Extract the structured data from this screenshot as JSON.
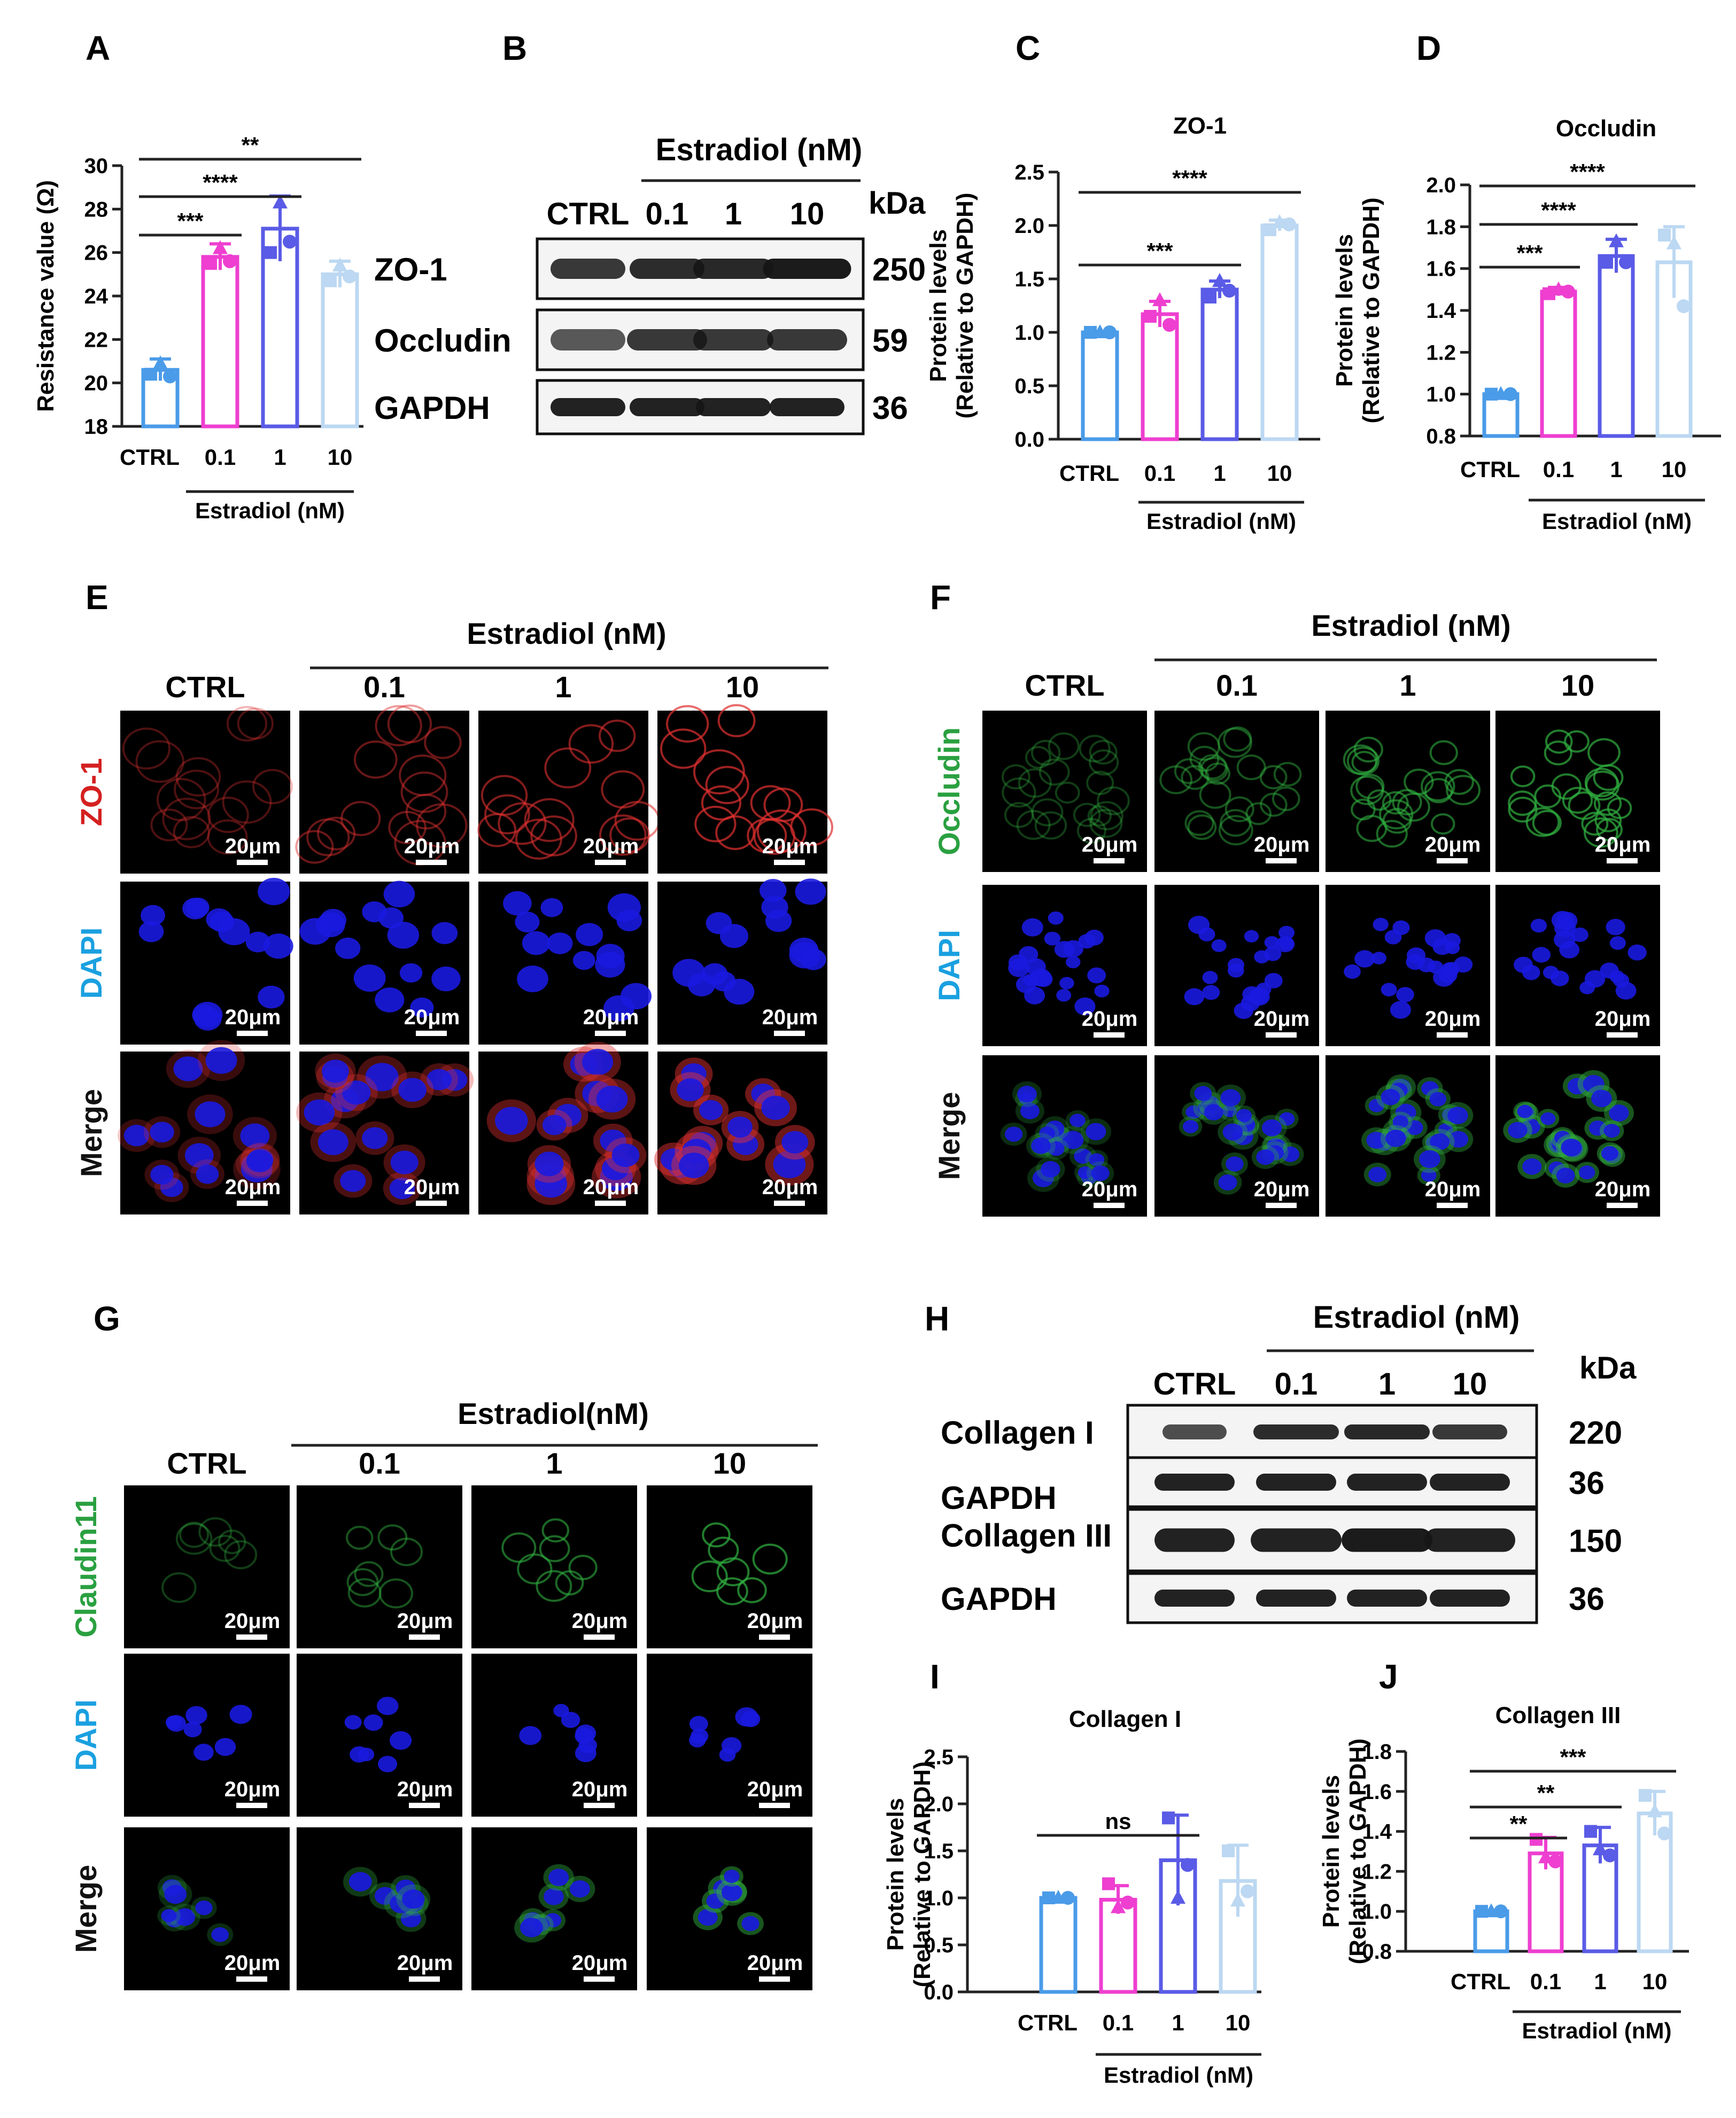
{
  "panels": {
    "A": {
      "label": "A"
    },
    "B": {
      "label": "B",
      "treatment": "Estradiol (nM)",
      "lanes": [
        "CTRL",
        "0.1",
        "1",
        "10"
      ],
      "unit": "kDa",
      "bands": [
        {
          "name": "ZO-1",
          "kda": "250"
        },
        {
          "name": "Occludin",
          "kda": "59"
        },
        {
          "name": "GAPDH",
          "kda": "36"
        }
      ]
    },
    "C": {
      "label": "C"
    },
    "D": {
      "label": "D"
    },
    "E": {
      "label": "E",
      "treatment": "Estradiol (nM)",
      "cols": [
        "CTRL",
        "0.1",
        "1",
        "10"
      ],
      "rows": [
        {
          "name": "ZO-1",
          "color": "#d42020"
        },
        {
          "name": "DAPI",
          "color": "#1aa0e0"
        },
        {
          "name": "Merge",
          "color": "#111111"
        }
      ],
      "scalebar": "20μm"
    },
    "F": {
      "label": "F",
      "treatment": "Estradiol (nM)",
      "cols": [
        "CTRL",
        "0.1",
        "1",
        "10"
      ],
      "rows": [
        {
          "name": "Occludin",
          "color": "#2aa040"
        },
        {
          "name": "DAPI",
          "color": "#1aa0e0"
        },
        {
          "name": "Merge",
          "color": "#111111"
        }
      ],
      "scalebar": "20μm"
    },
    "G": {
      "label": "G",
      "treatment": "Estradiol(nM)",
      "cols": [
        "CTRL",
        "0.1",
        "1",
        "10"
      ],
      "rows": [
        {
          "name": "Claudin11",
          "color": "#2aa040"
        },
        {
          "name": "DAPI",
          "color": "#1aa0e0"
        },
        {
          "name": "Merge",
          "color": "#111111"
        }
      ],
      "scalebar": "20μm"
    },
    "H": {
      "label": "H",
      "treatment": "Estradiol (nM)",
      "lanes": [
        "CTRL",
        "0.1",
        "1",
        "10"
      ],
      "unit": "kDa",
      "bands": [
        {
          "name": "Collagen I",
          "kda": "220"
        },
        {
          "name": "GAPDH",
          "kda": "36"
        },
        {
          "name": "Collagen III",
          "kda": "150"
        },
        {
          "name": "GAPDH",
          "kda": "36"
        }
      ]
    },
    "I": {
      "label": "I"
    },
    "J": {
      "label": "J"
    }
  },
  "colors": {
    "ctrl": "#4a9be8",
    "c01": "#ee3fd0",
    "c1": "#5a5be6",
    "c10": "#bcd8f2"
  },
  "chart_data": [
    {
      "panel": "A",
      "type": "bar",
      "title": "",
      "ylabel": "Resistance value (Ω)",
      "xgroup_label": "Estradiol (nM)",
      "categories": [
        "CTRL",
        "0.1",
        "1",
        "10"
      ],
      "values": [
        20.6,
        25.8,
        27.1,
        25.0
      ],
      "errors": [
        0.5,
        0.6,
        1.5,
        0.6
      ],
      "points": [
        [
          20.4,
          20.9,
          20.3
        ],
        [
          25.5,
          26.2,
          25.6
        ],
        [
          26.0,
          28.3,
          26.5
        ],
        [
          24.7,
          25.4,
          24.9
        ]
      ],
      "ylim": [
        18,
        30
      ],
      "yticks": [
        18,
        20,
        22,
        24,
        26,
        28,
        30
      ],
      "grid": false,
      "comparisons": [
        {
          "from": "CTRL",
          "to": "0.1",
          "label": "***"
        },
        {
          "from": "CTRL",
          "to": "1",
          "label": "****"
        },
        {
          "from": "CTRL",
          "to": "10",
          "label": "**"
        }
      ]
    },
    {
      "panel": "C",
      "type": "bar",
      "title": "ZO-1",
      "ylabel": "Protein levels\n(Relative to GAPDH)",
      "xgroup_label": "Estradiol (nM)",
      "categories": [
        "CTRL",
        "0.1",
        "1",
        "10"
      ],
      "values": [
        1.0,
        1.17,
        1.4,
        2.0
      ],
      "errors": [
        0.0,
        0.12,
        0.08,
        0.05
      ],
      "points": [
        [
          1.0,
          1.0,
          1.0
        ],
        [
          1.15,
          1.3,
          1.07
        ],
        [
          1.33,
          1.48,
          1.39
        ],
        [
          1.96,
          2.03,
          2.01
        ]
      ],
      "ylim": [
        0.0,
        2.5
      ],
      "yticks": [
        0.0,
        0.5,
        1.0,
        1.5,
        2.0,
        2.5
      ],
      "grid": false,
      "comparisons": [
        {
          "from": "CTRL",
          "to": "1",
          "label": "***"
        },
        {
          "from": "CTRL",
          "to": "10",
          "label": "****"
        }
      ]
    },
    {
      "panel": "D",
      "type": "bar",
      "title": "Occludin",
      "ylabel": "Protein levels\n(Relative to GAPDH)",
      "xgroup_label": "Estradiol (nM)",
      "categories": [
        "CTRL",
        "0.1",
        "1",
        "10"
      ],
      "values": [
        1.0,
        1.49,
        1.66,
        1.63
      ],
      "errors": [
        0.0,
        0.02,
        0.08,
        0.17
      ],
      "points": [
        [
          1.0,
          1.0,
          1.0
        ],
        [
          1.48,
          1.5,
          1.49
        ],
        [
          1.63,
          1.73,
          1.63
        ],
        [
          1.76,
          1.72,
          1.42
        ]
      ],
      "ylim": [
        0.8,
        2.0
      ],
      "yticks": [
        0.8,
        1.0,
        1.2,
        1.4,
        1.6,
        1.8,
        2.0
      ],
      "grid": false,
      "comparisons": [
        {
          "from": "CTRL",
          "to": "0.1",
          "label": "***"
        },
        {
          "from": "CTRL",
          "to": "1",
          "label": "****"
        },
        {
          "from": "CTRL",
          "to": "10",
          "label": "****"
        }
      ]
    },
    {
      "panel": "I",
      "type": "bar",
      "title": "Collagen I",
      "ylabel": "Protein levels\n(Relative to GAPDH)",
      "xgroup_label": "Estradiol (nM)",
      "categories": [
        "CTRL",
        "0.1",
        "1",
        "10"
      ],
      "values": [
        1.0,
        0.98,
        1.4,
        1.18
      ],
      "errors": [
        0.0,
        0.15,
        0.48,
        0.38
      ],
      "points": [
        [
          1.0,
          1.0,
          1.0
        ],
        [
          1.15,
          0.9,
          0.95
        ],
        [
          1.85,
          1.0,
          1.35
        ],
        [
          1.5,
          0.97,
          1.07
        ]
      ],
      "ylim": [
        0.0,
        2.5
      ],
      "yticks": [
        0.0,
        0.5,
        1.0,
        1.5,
        2.0,
        2.5
      ],
      "grid": false,
      "comparisons": [
        {
          "from": "CTRL",
          "to": "1",
          "label": "ns"
        }
      ]
    },
    {
      "panel": "J",
      "type": "bar",
      "title": "Collagen III",
      "ylabel": "Protein levels\n(Relative to GAPDH)",
      "xgroup_label": "Estradiol (nM)",
      "categories": [
        "CTRL",
        "0.1",
        "1",
        "10"
      ],
      "values": [
        1.0,
        1.29,
        1.33,
        1.49
      ],
      "errors": [
        0.0,
        0.08,
        0.09,
        0.11
      ],
      "points": [
        [
          1.0,
          1.0,
          1.0
        ],
        [
          1.36,
          1.27,
          1.25
        ],
        [
          1.4,
          1.31,
          1.28
        ],
        [
          1.58,
          1.5,
          1.39
        ]
      ],
      "ylim": [
        0.8,
        1.8
      ],
      "yticks": [
        0.8,
        1.0,
        1.2,
        1.4,
        1.6,
        1.8
      ],
      "grid": false,
      "comparisons": [
        {
          "from": "CTRL",
          "to": "0.1",
          "label": "**"
        },
        {
          "from": "CTRL",
          "to": "1",
          "label": "**"
        },
        {
          "from": "CTRL",
          "to": "10",
          "label": "***"
        }
      ]
    }
  ]
}
